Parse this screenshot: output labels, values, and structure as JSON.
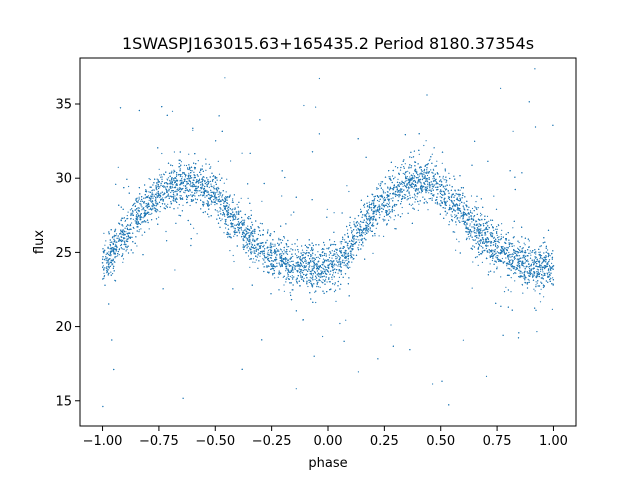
{
  "chart_data": {
    "type": "scatter",
    "title": "1SWASPJ163015.63+165435.2 Period 8180.37354s",
    "xlabel": "phase",
    "ylabel": "flux",
    "xlim": [
      -1.1,
      1.1
    ],
    "ylim": [
      13.3,
      38.1
    ],
    "x_ticks": [
      -1.0,
      -0.75,
      -0.5,
      -0.25,
      0.0,
      0.25,
      0.5,
      0.75,
      1.0
    ],
    "x_tick_labels": [
      "−1.00",
      "−0.75",
      "−0.50",
      "−0.25",
      "0.00",
      "0.25",
      "0.50",
      "0.75",
      "1.00"
    ],
    "y_ticks": [
      15,
      20,
      25,
      30,
      35
    ],
    "y_tick_labels": [
      "15",
      "20",
      "25",
      "30",
      "35"
    ],
    "grid": false,
    "legend": "none",
    "marker_color": "#1f77b4",
    "series": [
      {
        "x": [
          -1.0,
          -0.95,
          -0.9,
          -0.85,
          -0.8,
          -0.75,
          -0.7,
          -0.65,
          -0.6,
          -0.55,
          -0.5,
          -0.45,
          -0.4,
          -0.35,
          -0.3,
          -0.25,
          -0.2,
          -0.15,
          -0.1,
          -0.05,
          0.0,
          0.05,
          0.1,
          0.15,
          0.2,
          0.25,
          0.3,
          0.35,
          0.4,
          0.45,
          0.5,
          0.55,
          0.6,
          0.65,
          0.7,
          0.75,
          0.8,
          0.85,
          0.9,
          0.95,
          1.0
        ],
        "y": [
          24.3,
          25.2,
          26.2,
          27.3,
          28.2,
          28.9,
          29.4,
          29.7,
          29.7,
          29.3,
          28.7,
          27.8,
          26.9,
          26.0,
          25.3,
          24.8,
          24.4,
          24.1,
          24.0,
          23.9,
          24.0,
          24.5,
          25.4,
          26.5,
          27.6,
          28.5,
          29.1,
          29.6,
          29.8,
          29.7,
          29.2,
          28.4,
          27.5,
          26.6,
          25.9,
          25.3,
          24.8,
          24.4,
          24.1,
          24.0,
          24.1
        ]
      }
    ]
  }
}
